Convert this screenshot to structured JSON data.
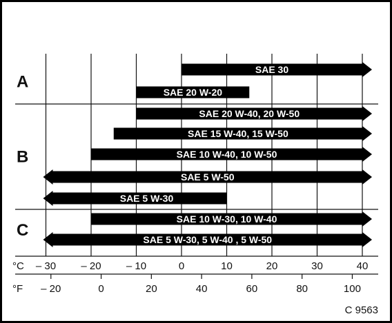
{
  "chart_data": {
    "type": "bar",
    "groups": [
      {
        "label": "A",
        "bars": [
          {
            "label": "SAE 30",
            "from": 0,
            "to": 40,
            "left_arrow": false,
            "right_arrow": true
          },
          {
            "label": "SAE 20 W-20",
            "from": -10,
            "to": 15,
            "left_arrow": false,
            "right_arrow": false
          }
        ]
      },
      {
        "label": "B",
        "bars": [
          {
            "label": "SAE 20 W-40, 20 W-50",
            "from": -10,
            "to": 40,
            "left_arrow": false,
            "right_arrow": true
          },
          {
            "label": "SAE 15 W-40, 15 W-50",
            "from": -15,
            "to": 40,
            "left_arrow": false,
            "right_arrow": true
          },
          {
            "label": "SAE 10 W-40, 10 W-50",
            "from": -20,
            "to": 40,
            "left_arrow": false,
            "right_arrow": true
          },
          {
            "label": "SAE 5 W-50",
            "from": -30,
            "to": 40,
            "left_arrow": true,
            "right_arrow": true
          },
          {
            "label": "SAE 5 W-30",
            "from": -30,
            "to": 10,
            "left_arrow": true,
            "right_arrow": false
          }
        ]
      },
      {
        "label": "C",
        "bars": [
          {
            "label": "SAE 10 W-30, 10 W-40",
            "from": -20,
            "to": 40,
            "left_arrow": false,
            "right_arrow": true
          },
          {
            "label": "SAE 5 W-30, 5 W-40 , 5 W-50",
            "from": -30,
            "to": 40,
            "left_arrow": true,
            "right_arrow": true
          }
        ]
      }
    ],
    "celsius_axis": {
      "unit": "°C",
      "ticks": [
        -30,
        -20,
        -10,
        0,
        10,
        20,
        30,
        40
      ],
      "labels": [
        "– 30",
        "– 20",
        "– 10",
        "0",
        "10",
        "20",
        "30",
        "40"
      ]
    },
    "fahrenheit_axis": {
      "unit": "°F",
      "ticks": [
        -20,
        0,
        20,
        40,
        60,
        80,
        100
      ],
      "labels": [
        "– 20",
        "0",
        "20",
        "40",
        "60",
        "80",
        "100"
      ]
    }
  },
  "figure_code": "C 9563"
}
